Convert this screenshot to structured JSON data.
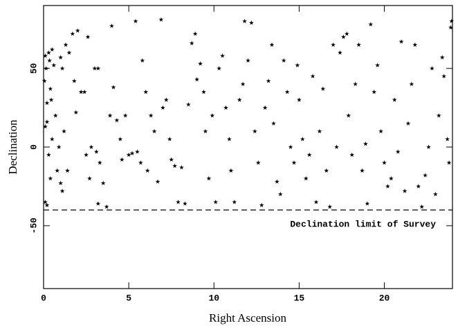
{
  "chart_data": {
    "type": "scatter",
    "xlabel": "Right Ascension",
    "ylabel": "Declination",
    "annotation": "Declination limit of Survey",
    "hline": -40,
    "xlim": [
      0,
      24
    ],
    "ylim": [
      -90,
      90
    ],
    "xticks": [
      0,
      5,
      10,
      15,
      20
    ],
    "yticks": [
      -50,
      0,
      50
    ],
    "color": "#000000",
    "x": [
      0.05,
      0.1,
      0.15,
      0.2,
      0.3,
      0.35,
      0.1,
      0.2,
      0.3,
      0.1,
      0.2,
      0.4,
      0.45,
      0.5,
      0.6,
      0.5,
      0.4,
      0.7,
      0.8,
      0.9,
      1.0,
      1.1,
      1.3,
      1.5,
      1.2,
      1.4,
      1.0,
      1.1,
      1.7,
      2.0,
      1.8,
      1.9,
      2.2,
      2.4,
      2.6,
      2.5,
      2.8,
      2.7,
      3.0,
      3.2,
      3.1,
      3.3,
      3.2,
      3.5,
      3.7,
      3.9,
      4.0,
      4.1,
      4.3,
      4.5,
      4.6,
      4.8,
      5.0,
      5.2,
      5.4,
      5.5,
      5.7,
      5.8,
      6.0,
      6.1,
      6.3,
      6.5,
      6.7,
      6.9,
      7.0,
      7.2,
      7.4,
      7.5,
      7.7,
      7.9,
      8.1,
      8.3,
      8.5,
      8.7,
      8.9,
      9.0,
      9.2,
      9.4,
      9.5,
      9.7,
      9.9,
      10.1,
      10.3,
      10.5,
      10.7,
      10.9,
      11.0,
      11.2,
      11.5,
      11.7,
      11.8,
      12.0,
      12.2,
      12.4,
      12.6,
      12.8,
      13.0,
      13.2,
      13.4,
      13.5,
      13.7,
      13.9,
      14.1,
      14.3,
      14.5,
      14.7,
      14.9,
      15.0,
      15.2,
      15.4,
      15.6,
      15.8,
      16.0,
      16.2,
      16.4,
      16.6,
      16.8,
      17.0,
      17.2,
      17.4,
      17.6,
      17.8,
      17.9,
      18.1,
      18.3,
      18.5,
      18.7,
      18.9,
      19.0,
      19.2,
      19.4,
      19.6,
      19.8,
      20.0,
      20.2,
      20.4,
      20.6,
      20.8,
      21.0,
      21.2,
      21.4,
      21.6,
      21.8,
      22.0,
      22.2,
      22.4,
      22.6,
      22.8,
      23.0,
      23.2,
      23.4,
      23.5,
      23.7,
      23.8,
      23.9,
      23.95
    ],
    "values": [
      42,
      58,
      50,
      28,
      60,
      55,
      13,
      16,
      -5,
      -35,
      -37,
      37,
      30,
      62,
      52,
      5,
      -20,
      20,
      -15,
      0,
      57,
      50,
      65,
      60,
      10,
      -15,
      -23,
      -28,
      72,
      74,
      42,
      22,
      35,
      35,
      70,
      -5,
      0,
      -20,
      50,
      50,
      -3,
      -10,
      -36,
      -23,
      -38,
      20,
      77,
      38,
      17,
      5,
      -8,
      20,
      -5,
      -4,
      80,
      -3,
      -10,
      55,
      35,
      -15,
      20,
      10,
      -22,
      81,
      25,
      30,
      5,
      -8,
      -12,
      -35,
      -13,
      -36,
      27,
      66,
      72,
      43,
      53,
      35,
      10,
      -20,
      20,
      -35,
      50,
      58,
      25,
      5,
      -15,
      -35,
      30,
      40,
      80,
      55,
      79,
      10,
      -10,
      -37,
      25,
      42,
      65,
      15,
      -22,
      -30,
      55,
      35,
      0,
      -10,
      52,
      30,
      5,
      -20,
      -5,
      45,
      -35,
      10,
      37,
      -15,
      -38,
      65,
      0,
      60,
      70,
      72,
      20,
      -5,
      40,
      65,
      -15,
      2,
      -36,
      78,
      35,
      52,
      10,
      -10,
      -25,
      -20,
      30,
      -3,
      67,
      -28,
      15,
      40,
      65,
      -25,
      -38,
      -18,
      0,
      50,
      -30,
      20,
      57,
      45,
      5,
      -10,
      76,
      80
    ]
  }
}
